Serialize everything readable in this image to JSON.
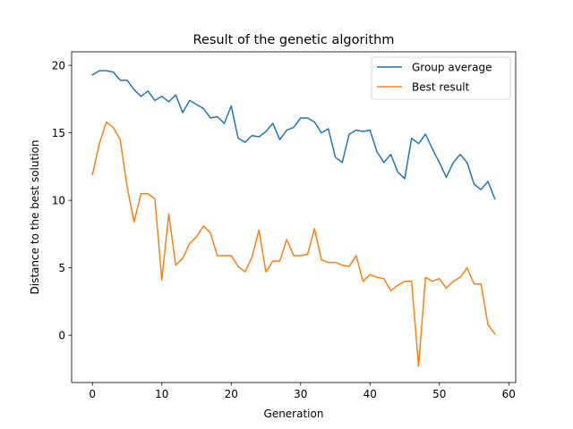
{
  "chart_data": {
    "type": "line",
    "title": "Result of the genetic algorithm",
    "xlabel": "Generation",
    "ylabel": "Distance to the best solution",
    "xlim": [
      -3,
      61
    ],
    "ylim": [
      -3.5,
      21
    ],
    "xticks": [
      0,
      10,
      20,
      30,
      40,
      50,
      60
    ],
    "yticks": [
      0,
      5,
      10,
      15,
      20
    ],
    "grid": false,
    "legend_position": "top-right",
    "x": [
      0,
      1,
      2,
      3,
      4,
      5,
      6,
      7,
      8,
      9,
      10,
      11,
      12,
      13,
      14,
      15,
      16,
      17,
      18,
      19,
      20,
      21,
      22,
      23,
      24,
      25,
      26,
      27,
      28,
      29,
      30,
      31,
      32,
      33,
      34,
      35,
      36,
      37,
      38,
      39,
      40,
      41,
      42,
      43,
      44,
      45,
      46,
      47,
      48,
      49,
      50,
      51,
      52,
      53,
      54,
      55,
      56,
      57,
      58
    ],
    "series": [
      {
        "name": "Group average",
        "color": "#1f77b4",
        "values": [
          19.3,
          19.6,
          19.6,
          19.5,
          18.9,
          18.9,
          18.2,
          17.7,
          18.1,
          17.4,
          17.7,
          17.3,
          17.8,
          16.5,
          17.4,
          17.1,
          16.8,
          16.1,
          16.2,
          15.7,
          17.0,
          14.6,
          14.3,
          14.8,
          14.7,
          15.1,
          15.7,
          14.5,
          15.2,
          15.4,
          16.1,
          16.1,
          15.8,
          15.0,
          15.3,
          13.2,
          12.8,
          14.9,
          15.2,
          15.1,
          15.2,
          13.6,
          12.8,
          13.4,
          12.1,
          11.6,
          14.6,
          14.2,
          14.9,
          13.8,
          12.8,
          11.7,
          12.8,
          13.4,
          12.8,
          11.2,
          10.8,
          11.4,
          10.1
        ]
      },
      {
        "name": "Best result",
        "color": "#ff7f0e",
        "values": [
          11.9,
          14.2,
          15.8,
          15.4,
          14.5,
          11.0,
          8.4,
          10.5,
          10.5,
          10.1,
          4.1,
          9.0,
          5.2,
          5.7,
          6.8,
          7.3,
          8.1,
          7.6,
          5.9,
          5.9,
          5.9,
          5.1,
          4.7,
          5.8,
          7.8,
          4.7,
          5.5,
          5.5,
          7.1,
          5.9,
          5.9,
          6.0,
          7.9,
          5.6,
          5.4,
          5.4,
          5.2,
          5.1,
          5.9,
          4.0,
          4.5,
          4.3,
          4.2,
          3.3,
          3.7,
          4.0,
          4.0,
          -2.3,
          4.3,
          4.0,
          4.2,
          3.5,
          4.0,
          4.3,
          5.0,
          3.8,
          3.8,
          0.8,
          0.1
        ]
      }
    ]
  }
}
